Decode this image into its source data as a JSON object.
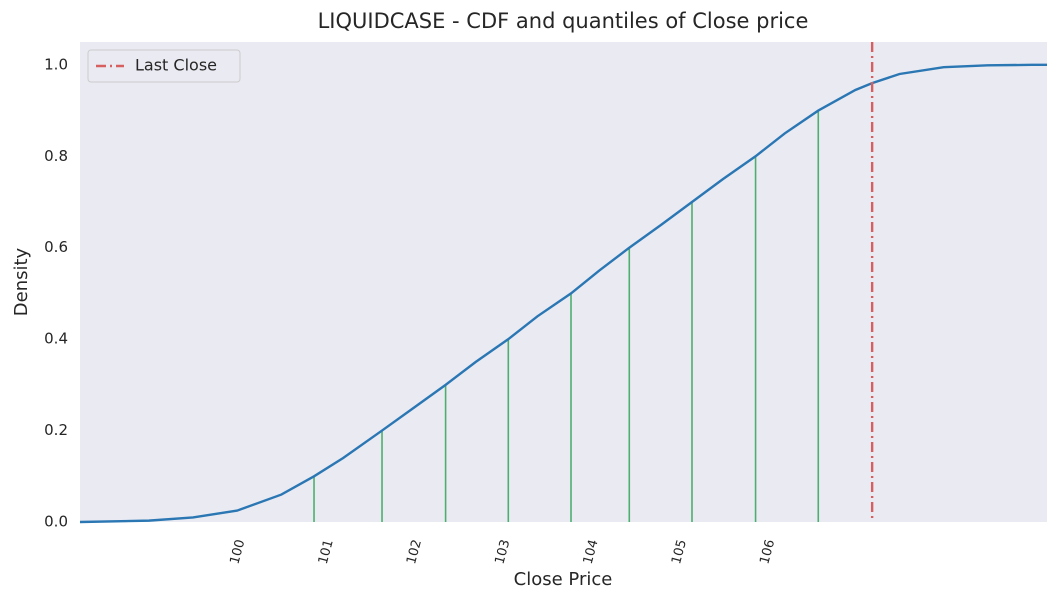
{
  "chart_data": {
    "type": "line",
    "title": "LIQUIDCASE - CDF and quantiles of Close price",
    "xlabel": "Close Price",
    "ylabel": "Density",
    "series": [
      {
        "name": "CDF",
        "color": "#2a77b4",
        "x": [
          98.22,
          99.0,
          99.5,
          100.0,
          100.5,
          100.87,
          101.2,
          101.64,
          102.0,
          102.36,
          102.7,
          103.07,
          103.4,
          103.78,
          104.1,
          104.44,
          104.8,
          105.15,
          105.5,
          105.87,
          106.2,
          106.58,
          107.0,
          107.19,
          107.5,
          108.0,
          108.5,
          109.0,
          109.17
        ],
        "values": [
          0.0,
          0.003,
          0.01,
          0.025,
          0.06,
          0.1,
          0.14,
          0.2,
          0.25,
          0.3,
          0.35,
          0.4,
          0.45,
          0.5,
          0.55,
          0.6,
          0.65,
          0.7,
          0.75,
          0.8,
          0.85,
          0.9,
          0.945,
          0.96,
          0.98,
          0.995,
          0.999,
          1.0,
          1.0
        ]
      }
    ],
    "quantiles": {
      "color": "#4daf6f",
      "x": [
        100.87,
        101.64,
        102.36,
        103.07,
        103.78,
        104.44,
        105.15,
        105.87,
        106.58
      ],
      "values": [
        0.1,
        0.2,
        0.3,
        0.4,
        0.5,
        0.6,
        0.7,
        0.8,
        0.9
      ]
    },
    "vlines": [
      {
        "name": "Last Close",
        "x": 107.19,
        "color": "#d65f5f"
      }
    ],
    "xlim": [
      98.22,
      109.17
    ],
    "ylim": [
      0,
      1.05
    ],
    "xticks": [
      100,
      101,
      102,
      103,
      104,
      105,
      106
    ],
    "yticks": [
      {
        "value": 0,
        "label": "0.0"
      },
      0.2,
      0.4,
      0.6,
      0.8,
      {
        "value": 1,
        "label": "1.0"
      }
    ],
    "legend": "upper left",
    "grid": false
  }
}
